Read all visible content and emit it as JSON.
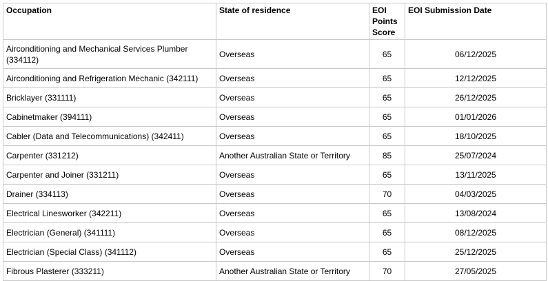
{
  "table": {
    "header": [
      "Occupation",
      "State of residence",
      "EOI Points Score",
      "EOI Submission Date"
    ],
    "rows": [
      [
        "Airconditioning and Mechanical Services Plumber (334112)",
        "Overseas",
        65,
        "06/12/2025"
      ],
      [
        "Airconditioning and Refrigeration Mechanic (342111)",
        "Overseas",
        65,
        "12/12/2025"
      ],
      [
        "Bricklayer (331111)",
        "Overseas",
        65,
        "26/12/2025"
      ],
      [
        "Cabinetmaker (394111)",
        "Overseas",
        65,
        "01/01/2026"
      ],
      [
        "Cabler (Data and Telecommunications) (342411)",
        "Overseas",
        65,
        "18/10/2025"
      ],
      [
        "Carpenter (331212)",
        "Another Australian State or Territory",
        85,
        "25/07/2024"
      ],
      [
        "Carpenter and Joiner (331211)",
        "Overseas",
        65,
        "13/11/2025"
      ],
      [
        "Drainer (334113)",
        "Overseas",
        70,
        "04/03/2025"
      ],
      [
        "Electrical Linesworker (342211)",
        "Overseas",
        65,
        "13/08/2024"
      ],
      [
        "Electrician (General) (341111)",
        "Overseas",
        65,
        "08/12/2025"
      ],
      [
        "Electrician (Special Class) (341112)",
        "Overseas",
        65,
        "25/12/2025"
      ],
      [
        "Fibrous Plasterer (333211)",
        "Another Australian State or Territory",
        70,
        "27/05/2025"
      ]
    ]
  }
}
